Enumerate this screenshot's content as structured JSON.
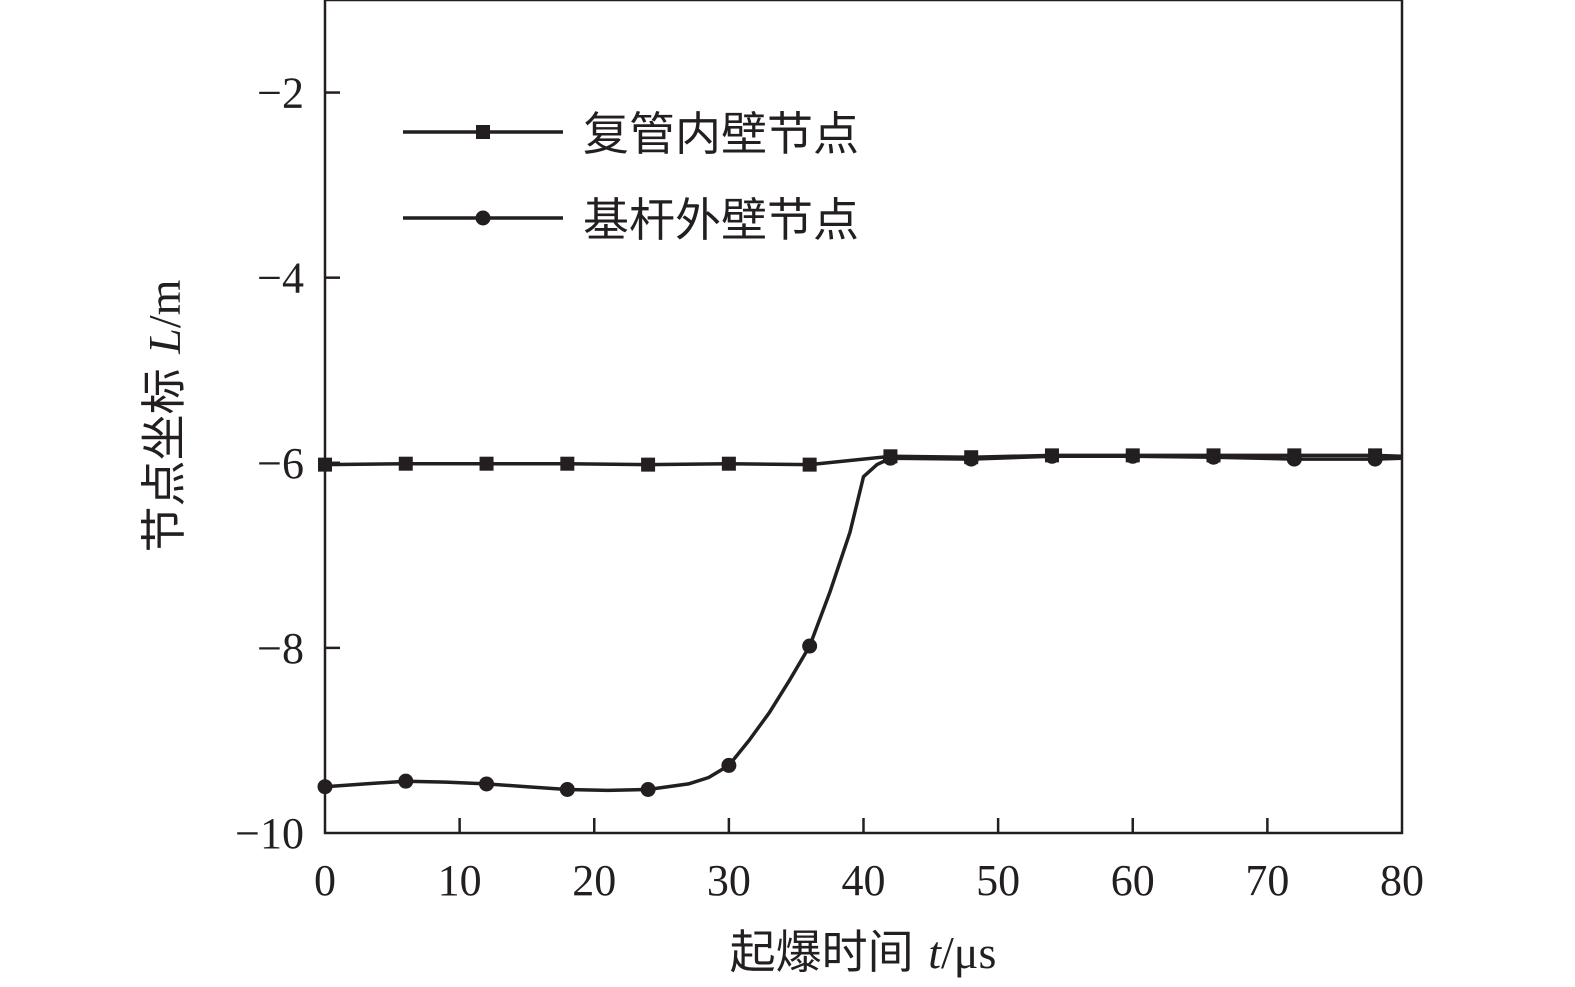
{
  "chart_data": {
    "type": "line",
    "xlabel": {
      "prefix": "起爆时间 ",
      "var": "t",
      "unit": "/μs"
    },
    "ylabel": {
      "prefix": "节点坐标 ",
      "var": "L",
      "unit": "/m"
    },
    "xlim": [
      0,
      80
    ],
    "ylim": [
      -10,
      -1
    ],
    "x_ticks": [
      0,
      10,
      20,
      30,
      40,
      50,
      60,
      70,
      80
    ],
    "y_ticks": [
      -10,
      -8,
      -6,
      -4,
      -2
    ],
    "y_tick_labels": [
      "−10",
      "−8",
      "−6",
      "−4",
      "−2"
    ],
    "grid": false,
    "legend_position": "top-left",
    "series": [
      {
        "name": "复管内壁节点",
        "marker": "square",
        "color": "#231f20",
        "x": [
          0,
          6,
          12,
          18,
          24,
          30,
          36,
          42,
          48,
          54,
          60,
          66,
          72,
          78,
          80
        ],
        "y": [
          -6.02,
          -6.01,
          -6.01,
          -6.01,
          -6.02,
          -6.01,
          -6.02,
          -5.93,
          -5.94,
          -5.92,
          -5.92,
          -5.92,
          -5.92,
          -5.92,
          -5.93
        ],
        "marker_x": [
          0,
          6,
          12,
          18,
          24,
          30,
          36,
          42,
          48,
          54,
          60,
          66,
          72,
          78
        ]
      },
      {
        "name": "基杆外壁节点",
        "marker": "circle",
        "color": "#231f20",
        "x": [
          0,
          3,
          6,
          9,
          12,
          15,
          18,
          21,
          24,
          27,
          28.5,
          30,
          31.5,
          33,
          34.5,
          36,
          37.5,
          39,
          40,
          41,
          42,
          48,
          54,
          60,
          66,
          72,
          78,
          80
        ],
        "y": [
          -9.5,
          -9.47,
          -9.44,
          -9.45,
          -9.47,
          -9.5,
          -9.53,
          -9.54,
          -9.53,
          -9.47,
          -9.4,
          -9.27,
          -9.0,
          -8.7,
          -8.35,
          -7.98,
          -7.4,
          -6.75,
          -6.15,
          -6.02,
          -5.95,
          -5.96,
          -5.93,
          -5.93,
          -5.94,
          -5.96,
          -5.96,
          -5.95
        ],
        "marker_x": [
          0,
          6,
          12,
          18,
          24,
          30,
          36,
          42,
          48,
          54,
          60,
          66,
          72,
          78
        ]
      }
    ]
  }
}
